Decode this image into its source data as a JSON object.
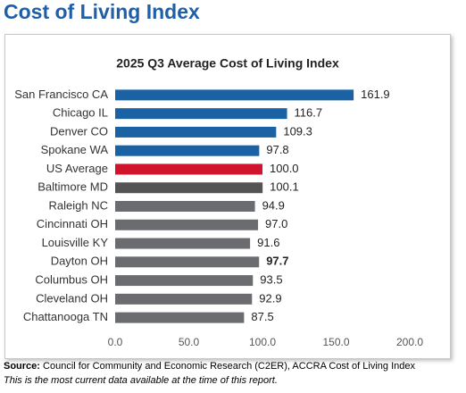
{
  "header": {
    "title": "Cost of Living Index"
  },
  "chart_data": {
    "type": "bar",
    "orientation": "horizontal",
    "title": "2025 Q3 Average Cost of Living Index",
    "categories": [
      "San Francisco CA",
      "Chicago IL",
      "Denver CO",
      "Spokane WA",
      "US Average",
      "Baltimore MD",
      "Raleigh NC",
      "Cincinnati OH",
      "Louisville KY",
      "Dayton OH",
      "Columbus OH",
      "Cleveland OH",
      "Chattanooga TN"
    ],
    "values": [
      161.9,
      116.7,
      109.3,
      97.8,
      100,
      100.1,
      94.9,
      97,
      91.6,
      97.7,
      93.5,
      92.9,
      87.5
    ],
    "value_labels": [
      "161.9",
      "116.7",
      "109.3",
      "97.8",
      "100.0",
      "100.1",
      "94.9",
      "97.0",
      "91.6",
      "97.7",
      "93.5",
      "92.9",
      "87.5"
    ],
    "value_label_weights": [
      "normal",
      "normal",
      "normal",
      "normal",
      "normal",
      "normal",
      "normal",
      "normal",
      "normal",
      "bold",
      "normal",
      "normal",
      "normal"
    ],
    "colors": [
      "#1b62a5",
      "#1b62a5",
      "#1b62a5",
      "#1b62a5",
      "#d0142c",
      "#545454",
      "#6b6c6f",
      "#6b6c6f",
      "#6b6c6f",
      "#6b6c6f",
      "#6b6c6f",
      "#6b6c6f",
      "#6b6c6f"
    ],
    "xlim": [
      0,
      200
    ],
    "xticks": [
      {
        "value": 0,
        "label": "0.0"
      },
      {
        "value": 50,
        "label": "50.0"
      },
      {
        "value": 100,
        "label": "100.0"
      },
      {
        "value": 150,
        "label": "150.0"
      },
      {
        "value": 200,
        "label": "200.0"
      }
    ],
    "grid": false
  },
  "footer": {
    "source_label": "Source:",
    "source_text": "Council for Community and Economic Research (C2ER), ACCRA Cost of Living Index",
    "note": "This is the most current data available at the time of this report."
  }
}
